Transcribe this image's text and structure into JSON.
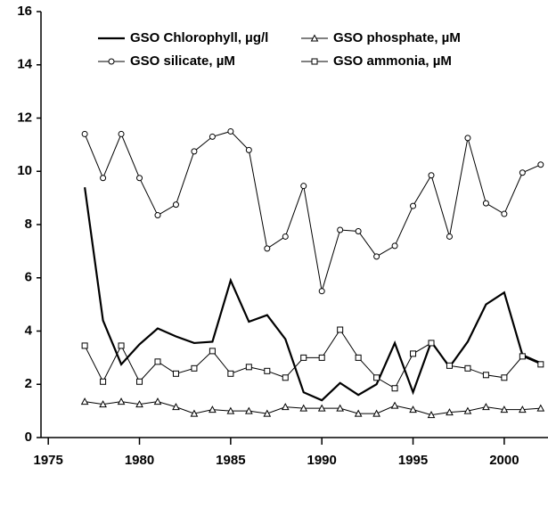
{
  "chart_data": {
    "type": "line",
    "x": [
      1977,
      1978,
      1979,
      1980,
      1981,
      1982,
      1983,
      1984,
      1985,
      1986,
      1987,
      1988,
      1989,
      1990,
      1991,
      1992,
      1993,
      1994,
      1995,
      1996,
      1997,
      1998,
      1999,
      2000,
      2001,
      2002
    ],
    "series": [
      {
        "name": "GSO Chlorophyll, µg/l",
        "color": "#000000",
        "marker": "none",
        "values": [
          9.4,
          4.4,
          2.75,
          3.5,
          4.1,
          3.8,
          3.55,
          3.6,
          5.9,
          4.35,
          4.6,
          3.7,
          1.7,
          1.4,
          2.05,
          1.6,
          2.0,
          3.55,
          1.7,
          3.6,
          2.65,
          3.6,
          5.0,
          5.45,
          3.1,
          2.8
        ]
      },
      {
        "name": "GSO phosphate, µM",
        "color": "#000000",
        "marker": "triangle",
        "values": [
          1.35,
          1.25,
          1.35,
          1.25,
          1.35,
          1.15,
          0.9,
          1.05,
          1.0,
          1.0,
          0.9,
          1.15,
          1.1,
          1.1,
          1.1,
          0.9,
          0.9,
          1.2,
          1.05,
          0.85,
          0.95,
          1.0,
          1.15,
          1.05,
          1.05,
          1.1
        ]
      },
      {
        "name": "GSO silicate, µM",
        "color": "#000000",
        "marker": "circle",
        "values": [
          11.4,
          9.75,
          11.4,
          9.75,
          8.35,
          8.75,
          10.75,
          11.3,
          11.5,
          10.8,
          7.1,
          7.55,
          9.45,
          5.5,
          7.8,
          7.75,
          6.8,
          7.2,
          8.7,
          9.85,
          7.55,
          11.25,
          8.8,
          8.4,
          9.95,
          10.25
        ]
      },
      {
        "name": "GSO ammonia, µM",
        "color": "#000000",
        "marker": "square",
        "values": [
          3.45,
          2.1,
          3.45,
          2.1,
          2.85,
          2.4,
          2.6,
          3.25,
          2.4,
          2.65,
          2.5,
          2.25,
          3.0,
          3.0,
          4.05,
          3.0,
          2.25,
          1.85,
          3.15,
          3.55,
          2.7,
          2.6,
          2.35,
          2.25,
          3.05,
          2.75
        ]
      }
    ],
    "xlim": [
      1974.6,
      2002.4
    ],
    "xticks": [
      1975,
      1980,
      1985,
      1990,
      1995,
      2000
    ],
    "ylim": [
      0,
      16
    ],
    "yticks": [
      0,
      2,
      4,
      6,
      8,
      10,
      12,
      14,
      16
    ]
  }
}
